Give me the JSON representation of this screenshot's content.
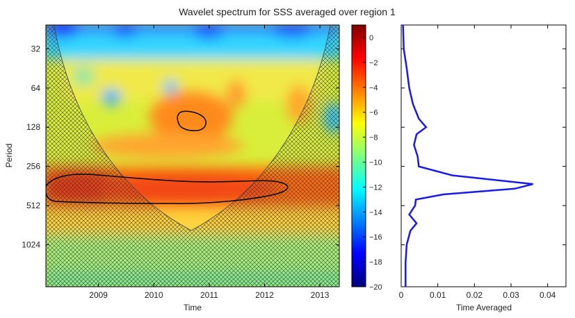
{
  "chart_data": [
    {
      "type": "heatmap",
      "title": "Wavelet spectrum for SSS averaged over region 1",
      "xlabel": "Time",
      "ylabel": "Period",
      "x_ticks": [
        "2009",
        "2010",
        "2011",
        "2012",
        "2013"
      ],
      "x_tick_values": [
        2009,
        2010,
        2011,
        2012,
        2013
      ],
      "xlim": [
        2008.05,
        2013.35
      ],
      "y_ticks": [
        "32",
        "64",
        "128",
        "256",
        "512",
        "1024"
      ],
      "y_tick_values": [
        32,
        64,
        128,
        256,
        512,
        1024
      ],
      "ylim": [
        21,
        2150
      ],
      "y_scale": "log2 (reversed)",
      "colormap": "jet",
      "significance_contours": 2,
      "cone_of_influence": "hatched",
      "colorbar": {
        "ticks": [
          "0",
          "−2",
          "−4",
          "−6",
          "−8",
          "−10",
          "−12",
          "−14",
          "−16",
          "−18",
          "−20"
        ],
        "tick_values": [
          0,
          -2,
          -4,
          -6,
          -8,
          -10,
          -12,
          -14,
          -16,
          -18,
          -20
        ],
        "range": [
          -20,
          1
        ]
      }
    },
    {
      "type": "line",
      "xlabel": "Time Averaged",
      "ylabel": "",
      "x_ticks": [
        "0",
        "0.01",
        "0.02",
        "0.03",
        "0.04"
      ],
      "x_tick_values": [
        0,
        0.01,
        0.02,
        0.03,
        0.04
      ],
      "xlim": [
        0,
        0.045
      ],
      "ylim": [
        21,
        2150
      ],
      "color": "#1a1ae6",
      "series": [
        {
          "period": [
            21,
            32,
            45,
            64,
            85,
            110,
            128,
            145,
            175,
            215,
            256,
            300,
            350,
            380,
            420,
            460,
            512,
            600,
            700,
            800,
            1024,
            1400,
            2150
          ],
          "values": [
            0.0005,
            0.0007,
            0.0015,
            0.0022,
            0.0032,
            0.0048,
            0.0068,
            0.0042,
            0.0035,
            0.0045,
            0.0048,
            0.014,
            0.036,
            0.031,
            0.0115,
            0.004,
            0.0038,
            0.0022,
            0.0042,
            0.0025,
            0.0015,
            0.0012,
            0.0012
          ]
        }
      ]
    }
  ]
}
